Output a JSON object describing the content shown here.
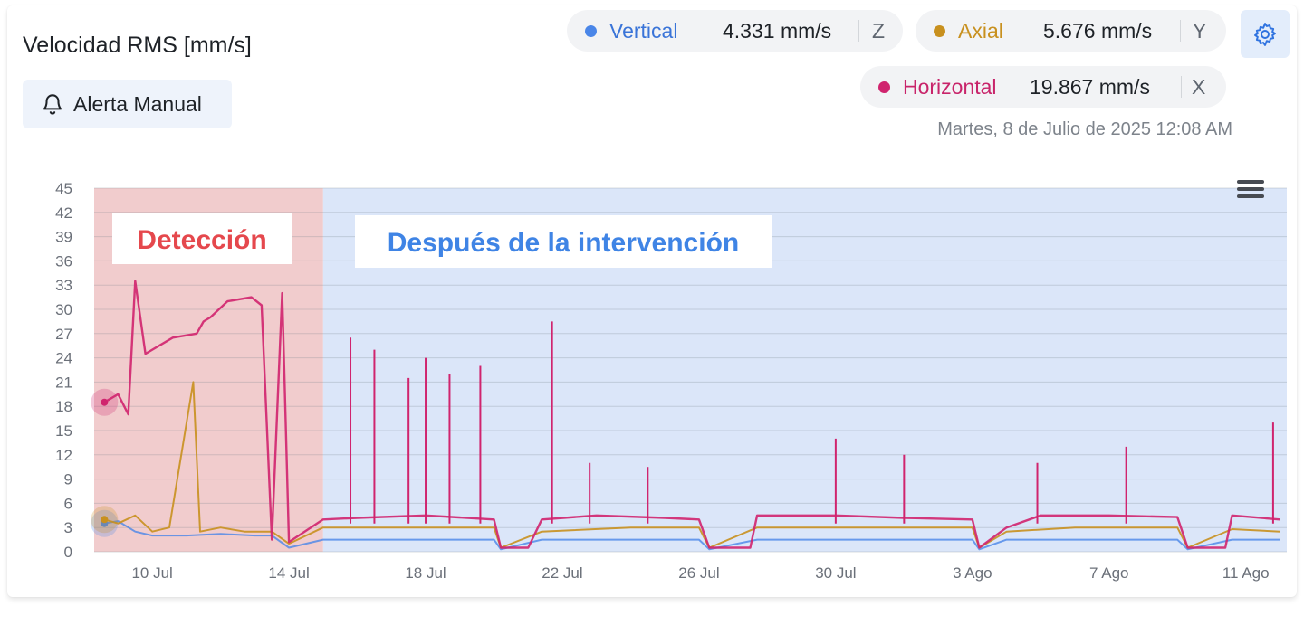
{
  "title": "Velocidad RMS [mm/s]",
  "alert_button": {
    "label": "Alerta Manual",
    "icon": "bell-icon"
  },
  "settings": {
    "icon": "gear-icon"
  },
  "menu": {
    "icon": "menu-icon"
  },
  "timestamp": "Martes, 8 de Julio de 2025 12:08 AM",
  "colors": {
    "vertical": "#4a86e8",
    "axial": "#c8901e",
    "horizontal": "#d0246e",
    "detection_region": "#f1cccd",
    "after_region": "#dbe6f9",
    "detection_label": "#e5484d",
    "after_label": "#3f84e5"
  },
  "legend": [
    {
      "name": "Vertical",
      "value": "4.331 mm/s",
      "axis": "Z"
    },
    {
      "name": "Axial",
      "value": "5.676 mm/s",
      "axis": "Y"
    },
    {
      "name": "Horizontal",
      "value": "19.867 mm/s",
      "axis": "X"
    }
  ],
  "chart_data": {
    "type": "line",
    "y_ticks": [
      "45",
      "42",
      "39",
      "36",
      "33",
      "30",
      "27",
      "24",
      "21",
      "18",
      "15",
      "12",
      "9",
      "6",
      "3",
      "0"
    ],
    "ylim": [
      0,
      45
    ],
    "x_ticks": [
      "10 Jul",
      "14 Jul",
      "18 Jul",
      "22 Jul",
      "26 Jul",
      "30 Jul",
      "3 Ago",
      "7 Ago",
      "11 Ago"
    ],
    "x_tick_days": [
      10,
      14,
      18,
      22,
      26,
      30,
      34,
      38,
      42
    ],
    "xlim_days": [
      8.3,
      43.2
    ],
    "grid": "horizontal",
    "regions": [
      {
        "label": "Detección",
        "from_day": 8.3,
        "to_day": 15.0
      },
      {
        "label": "Después de la intervención",
        "from_day": 15.0,
        "to_day": 43.2
      }
    ],
    "series": [
      {
        "name": "Horizontal",
        "points": [
          [
            8.6,
            18.5
          ],
          [
            9.0,
            19.5
          ],
          [
            9.3,
            17.0
          ],
          [
            9.5,
            33.5
          ],
          [
            9.8,
            24.5
          ],
          [
            10.6,
            26.5
          ],
          [
            11.3,
            27.0
          ],
          [
            11.5,
            28.5
          ],
          [
            11.7,
            29.0
          ],
          [
            12.2,
            31.0
          ],
          [
            12.9,
            31.5
          ],
          [
            13.2,
            30.5
          ],
          [
            13.5,
            1.5
          ],
          [
            13.8,
            32.0
          ],
          [
            14.0,
            1.2
          ],
          [
            15.0,
            4.0
          ],
          [
            16.0,
            4.2
          ],
          [
            18.0,
            4.5
          ],
          [
            20.0,
            4.0
          ],
          [
            20.2,
            0.5
          ],
          [
            21.0,
            0.5
          ],
          [
            21.4,
            4.0
          ],
          [
            23.0,
            4.5
          ],
          [
            25.0,
            4.2
          ],
          [
            26.0,
            4.0
          ],
          [
            26.3,
            0.5
          ],
          [
            27.5,
            0.5
          ],
          [
            27.7,
            4.5
          ],
          [
            30.0,
            4.5
          ],
          [
            32.0,
            4.2
          ],
          [
            34.0,
            4.0
          ],
          [
            34.2,
            0.5
          ],
          [
            35.0,
            3.0
          ],
          [
            36.0,
            4.5
          ],
          [
            38.0,
            4.5
          ],
          [
            40.0,
            4.3
          ],
          [
            40.3,
            0.5
          ],
          [
            41.4,
            0.5
          ],
          [
            41.6,
            4.5
          ],
          [
            43.0,
            4.0
          ]
        ],
        "peaks": [
          [
            15.8,
            26.5
          ],
          [
            16.5,
            25.0
          ],
          [
            17.5,
            21.5
          ],
          [
            18.0,
            24.0
          ],
          [
            18.7,
            22.0
          ],
          [
            19.6,
            23.0
          ],
          [
            21.7,
            28.5
          ],
          [
            22.8,
            11.0
          ],
          [
            24.5,
            10.5
          ],
          [
            30.0,
            14.0
          ],
          [
            32.0,
            12.0
          ],
          [
            35.9,
            11.0
          ],
          [
            38.5,
            13.0
          ],
          [
            42.8,
            16.0
          ]
        ]
      },
      {
        "name": "Axial",
        "points": [
          [
            8.6,
            4.0
          ],
          [
            9.0,
            3.5
          ],
          [
            9.5,
            4.5
          ],
          [
            10.0,
            2.5
          ],
          [
            10.5,
            3.0
          ],
          [
            11.2,
            21.0
          ],
          [
            11.4,
            2.5
          ],
          [
            12.0,
            3.0
          ],
          [
            12.7,
            2.5
          ],
          [
            13.5,
            2.5
          ],
          [
            14.0,
            1.0
          ],
          [
            15.0,
            3.0
          ],
          [
            17.0,
            3.0
          ],
          [
            20.0,
            3.0
          ],
          [
            20.2,
            0.5
          ],
          [
            21.4,
            2.5
          ],
          [
            24.0,
            3.0
          ],
          [
            26.0,
            3.0
          ],
          [
            26.3,
            0.5
          ],
          [
            27.7,
            3.0
          ],
          [
            30.0,
            3.0
          ],
          [
            34.0,
            3.0
          ],
          [
            34.2,
            0.5
          ],
          [
            35.0,
            2.5
          ],
          [
            37.0,
            3.0
          ],
          [
            40.0,
            3.0
          ],
          [
            40.3,
            0.5
          ],
          [
            41.6,
            2.8
          ],
          [
            43.0,
            2.5
          ]
        ]
      },
      {
        "name": "Vertical",
        "points": [
          [
            8.6,
            3.5
          ],
          [
            9.0,
            3.8
          ],
          [
            9.5,
            2.5
          ],
          [
            10.0,
            2.0
          ],
          [
            11.0,
            2.0
          ],
          [
            12.0,
            2.2
          ],
          [
            13.0,
            2.0
          ],
          [
            13.5,
            2.0
          ],
          [
            14.0,
            0.5
          ],
          [
            15.0,
            1.5
          ],
          [
            18.0,
            1.5
          ],
          [
            20.0,
            1.5
          ],
          [
            20.2,
            0.3
          ],
          [
            21.4,
            1.5
          ],
          [
            26.0,
            1.5
          ],
          [
            26.3,
            0.3
          ],
          [
            27.7,
            1.5
          ],
          [
            34.0,
            1.5
          ],
          [
            34.2,
            0.3
          ],
          [
            35.0,
            1.5
          ],
          [
            40.0,
            1.5
          ],
          [
            40.3,
            0.3
          ],
          [
            41.6,
            1.5
          ],
          [
            43.0,
            1.5
          ]
        ]
      }
    ]
  }
}
